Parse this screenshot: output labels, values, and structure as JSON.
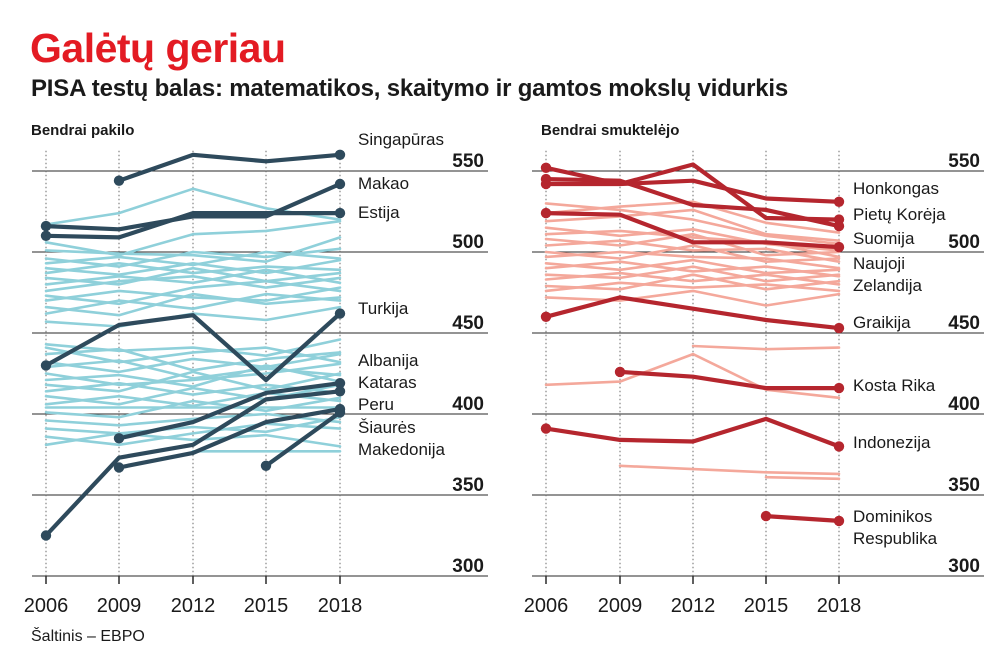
{
  "title": "Galėtų geriau",
  "subtitle": "PISA testų balas: matematikos, skaitymo ir gamtos mokslų vidurkis",
  "source": "Šaltinis – EBPO",
  "colors": {
    "title": "#e31b23",
    "left_highlight": "#2e4a5c",
    "left_background": "#8fd0da",
    "right_highlight": "#b5262e",
    "right_background": "#f4a89b",
    "grid": "#2a2a2a"
  },
  "chart_data": [
    {
      "type": "line",
      "title": "Bendrai pakilo",
      "categories": [
        "2006",
        "2009",
        "2012",
        "2015",
        "2018"
      ],
      "x": [
        2006,
        2009,
        2012,
        2015,
        2018
      ],
      "ylim": [
        300,
        560
      ],
      "yticks": [
        300,
        350,
        400,
        450,
        500,
        550
      ],
      "grid": true,
      "highlighted": [
        {
          "name": "Singapūras",
          "values": [
            null,
            544,
            560,
            556,
            560
          ]
        },
        {
          "name": "Makao",
          "values": [
            516,
            514,
            522,
            522,
            542
          ]
        },
        {
          "name": "Estija",
          "values": [
            510,
            509,
            524,
            524,
            524
          ]
        },
        {
          "name": "Turkija",
          "values": [
            430,
            455,
            461,
            421,
            462
          ]
        },
        {
          "name": "Albanija",
          "values": [
            null,
            385,
            395,
            413,
            419
          ]
        },
        {
          "name": "Kataras",
          "values": [
            325,
            373,
            381,
            409,
            414
          ]
        },
        {
          "name": "Peru",
          "values": [
            null,
            367,
            376,
            395,
            403
          ]
        },
        {
          "name": "Šiaurės Makedonija",
          "values": [
            null,
            null,
            null,
            368,
            401
          ]
        }
      ],
      "background": [
        [
          517,
          524,
          539,
          527,
          520
        ],
        [
          506,
          498,
          511,
          513,
          519
        ],
        [
          501,
          499,
          498,
          494,
          509
        ],
        [
          496,
          491,
          500,
          497,
          502
        ],
        [
          493,
          497,
          492,
          500,
          496
        ],
        [
          490,
          486,
          493,
          487,
          495
        ],
        [
          487,
          493,
          487,
          491,
          489
        ],
        [
          484,
          480,
          490,
          482,
          487
        ],
        [
          480,
          485,
          481,
          489,
          481
        ],
        [
          476,
          482,
          485,
          478,
          484
        ],
        [
          473,
          468,
          478,
          482,
          476
        ],
        [
          470,
          476,
          472,
          470,
          478
        ],
        [
          466,
          461,
          474,
          468,
          472
        ],
        [
          462,
          470,
          465,
          474,
          470
        ],
        [
          457,
          454,
          462,
          458,
          466
        ],
        [
          443,
          439,
          441,
          436,
          446
        ],
        [
          441,
          432,
          438,
          441,
          432
        ],
        [
          437,
          440,
          427,
          434,
          438
        ],
        [
          432,
          426,
          434,
          429,
          437
        ],
        [
          429,
          433,
          422,
          428,
          424
        ],
        [
          425,
          418,
          421,
          425,
          431
        ],
        [
          421,
          424,
          417,
          430,
          420
        ],
        [
          418,
          414,
          426,
          415,
          425
        ],
        [
          414,
          419,
          412,
          418,
          413
        ],
        [
          411,
          406,
          416,
          409,
          418
        ],
        [
          406,
          411,
          405,
          413,
          408
        ],
        [
          404,
          404,
          404,
          404,
          404
        ],
        [
          401,
          398,
          408,
          402,
          410
        ],
        [
          396,
          393,
          397,
          400,
          395
        ],
        [
          391,
          388,
          392,
          389,
          398
        ],
        [
          386,
          381,
          388,
          394,
          391
        ],
        [
          381,
          388,
          384,
          387,
          380
        ],
        [
          null,
          null,
          377,
          377,
          377
        ]
      ]
    },
    {
      "type": "line",
      "title": "Bendrai smuktelėjo",
      "categories": [
        "2006",
        "2009",
        "2012",
        "2015",
        "2018"
      ],
      "x": [
        2006,
        2009,
        2012,
        2015,
        2018
      ],
      "ylim": [
        300,
        560
      ],
      "yticks": [
        300,
        350,
        400,
        450,
        500,
        550
      ],
      "grid": true,
      "highlighted": [
        {
          "name": "Honkongas",
          "values": [
            542,
            542,
            544,
            533,
            531
          ]
        },
        {
          "name": "Pietų Korėja",
          "values": [
            552,
            542,
            554,
            521,
            520
          ]
        },
        {
          "name": "Suomija",
          "values": [
            545,
            544,
            529,
            526,
            516
          ]
        },
        {
          "name": "Naujoji Zelandija",
          "values": [
            524,
            523,
            506,
            506,
            503
          ]
        },
        {
          "name": "Graikija",
          "values": [
            460,
            472,
            465,
            458,
            453
          ]
        },
        {
          "name": "Kosta Rika",
          "values": [
            null,
            426,
            423,
            416,
            416
          ]
        },
        {
          "name": "Indonezija",
          "values": [
            391,
            384,
            383,
            397,
            380
          ]
        },
        {
          "name": "Dominikos Respublika",
          "values": [
            null,
            null,
            null,
            337,
            334
          ]
        }
      ],
      "background": [
        [
          530,
          526,
          520,
          510,
          505
        ],
        [
          524,
          528,
          531,
          518,
          512
        ],
        [
          519,
          522,
          526,
          511,
          507
        ],
        [
          515,
          510,
          514,
          505,
          501
        ],
        [
          511,
          513,
          509,
          506,
          497
        ],
        [
          508,
          504,
          511,
          498,
          500
        ],
        [
          504,
          507,
          501,
          502,
          494
        ],
        [
          500,
          496,
          504,
          494,
          496
        ],
        [
          497,
          500,
          497,
          496,
          490
        ],
        [
          493,
          489,
          495,
          487,
          489
        ],
        [
          490,
          494,
          488,
          491,
          485
        ],
        [
          486,
          484,
          491,
          482,
          486
        ],
        [
          483,
          487,
          482,
          486,
          480
        ],
        [
          479,
          477,
          486,
          477,
          482
        ],
        [
          476,
          481,
          478,
          480,
          476
        ],
        [
          472,
          470,
          476,
          467,
          474
        ],
        [
          null,
          null,
          442,
          440,
          441
        ],
        [
          418,
          420,
          437,
          415,
          410
        ],
        [
          null,
          368,
          366,
          364,
          363
        ],
        [
          null,
          null,
          null,
          361,
          360
        ]
      ]
    }
  ]
}
